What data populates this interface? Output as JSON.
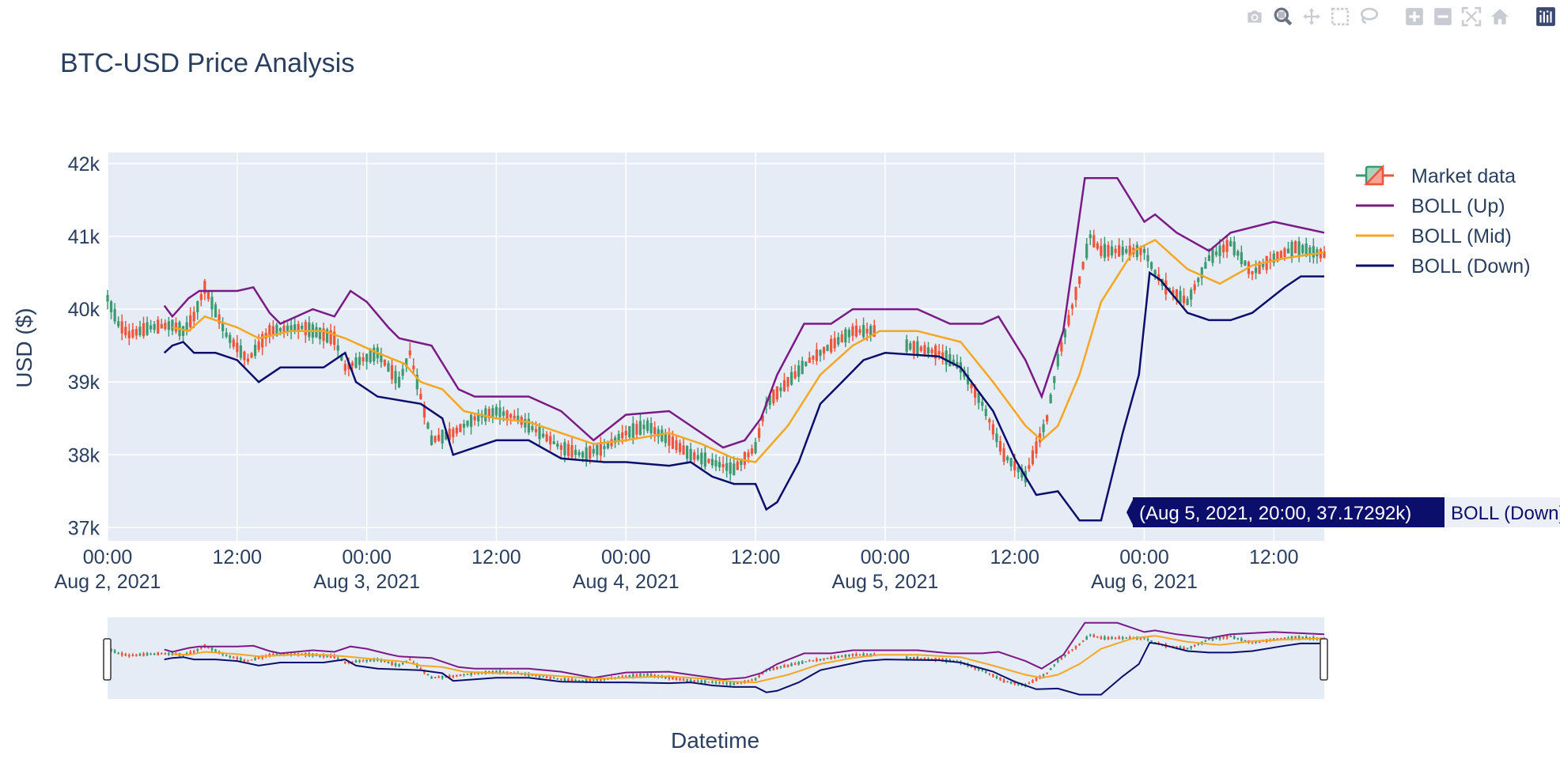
{
  "modebar": {
    "buttons": [
      "camera-icon",
      "zoom-icon",
      "pan-icon",
      "box-select-icon",
      "lasso-select-icon",
      "zoom-in-icon",
      "zoom-out-icon",
      "autoscale-icon",
      "reset-axes-icon",
      "plotly-logo-icon"
    ]
  },
  "chart_data": {
    "type": "candlestick",
    "title": "BTC-USD Price Analysis",
    "xlabel": "Datetime",
    "ylabel": "USD ($)",
    "xlim": [
      "2021-08-02 00:00",
      "2021-08-06 16:40"
    ],
    "ylim": [
      36820,
      42150
    ],
    "yticks": [
      {
        "value": 37000,
        "label": "37k"
      },
      {
        "value": 38000,
        "label": "38k"
      },
      {
        "value": 39000,
        "label": "39k"
      },
      {
        "value": 40000,
        "label": "40k"
      },
      {
        "value": 41000,
        "label": "41k"
      },
      {
        "value": 42000,
        "label": "42k"
      }
    ],
    "xticks": [
      {
        "value": "2021-08-02 00:00",
        "label": "00:00",
        "sub": "Aug 2, 2021"
      },
      {
        "value": "2021-08-02 12:00",
        "label": "12:00",
        "sub": ""
      },
      {
        "value": "2021-08-03 00:00",
        "label": "00:00",
        "sub": "Aug 3, 2021"
      },
      {
        "value": "2021-08-03 12:00",
        "label": "12:00",
        "sub": ""
      },
      {
        "value": "2021-08-04 00:00",
        "label": "00:00",
        "sub": "Aug 4, 2021"
      },
      {
        "value": "2021-08-04 12:00",
        "label": "12:00",
        "sub": ""
      },
      {
        "value": "2021-08-05 00:00",
        "label": "00:00",
        "sub": "Aug 5, 2021"
      },
      {
        "value": "2021-08-05 12:00",
        "label": "12:00",
        "sub": ""
      },
      {
        "value": "2021-08-06 00:00",
        "label": "00:00",
        "sub": "Aug 6, 2021"
      },
      {
        "value": "2021-08-06 12:00",
        "label": "12:00",
        "sub": ""
      }
    ],
    "grid": true,
    "legend_position": "right",
    "colors": {
      "increasing": "#3d9970",
      "decreasing": "#ef553b",
      "boll_up": "#7b1a85",
      "boll_mid": "#f5a623",
      "boll_down": "#0b0f6b",
      "plot_bg": "#e5ecf6"
    },
    "candle_trend": [
      [
        "2021-08-02 00:00",
        40150
      ],
      [
        "2021-08-02 01:00",
        39800
      ],
      [
        "2021-08-02 02:00",
        39650
      ],
      [
        "2021-08-02 04:00",
        39750
      ],
      [
        "2021-08-02 06:00",
        39780
      ],
      [
        "2021-08-02 07:00",
        39700
      ],
      [
        "2021-08-02 08:00",
        39900
      ],
      [
        "2021-08-02 09:00",
        40300
      ],
      [
        "2021-08-02 11:00",
        39650
      ],
      [
        "2021-08-02 13:00",
        39300
      ],
      [
        "2021-08-02 15:00",
        39700
      ],
      [
        "2021-08-02 18:00",
        39750
      ],
      [
        "2021-08-02 21:00",
        39600
      ],
      [
        "2021-08-02 22:00",
        39200
      ],
      [
        "2021-08-03 01:00",
        39400
      ],
      [
        "2021-08-03 03:00",
        39000
      ],
      [
        "2021-08-03 04:00",
        39400
      ],
      [
        "2021-08-03 05:00",
        38800
      ],
      [
        "2021-08-03 06:00",
        38200
      ],
      [
        "2021-08-03 08:00",
        38300
      ],
      [
        "2021-08-03 10:00",
        38500
      ],
      [
        "2021-08-03 12:00",
        38600
      ],
      [
        "2021-08-03 14:00",
        38500
      ],
      [
        "2021-08-03 16:00",
        38300
      ],
      [
        "2021-08-03 18:00",
        38100
      ],
      [
        "2021-08-03 20:00",
        38000
      ],
      [
        "2021-08-03 22:00",
        38100
      ],
      [
        "2021-08-04 00:00",
        38300
      ],
      [
        "2021-08-04 02:00",
        38400
      ],
      [
        "2021-08-04 04:00",
        38200
      ],
      [
        "2021-08-04 06:00",
        38000
      ],
      [
        "2021-08-04 08:00",
        37900
      ],
      [
        "2021-08-04 10:00",
        37800
      ],
      [
        "2021-08-04 12:00",
        38100
      ],
      [
        "2021-08-04 13:00",
        38700
      ],
      [
        "2021-08-04 15:00",
        39000
      ],
      [
        "2021-08-04 17:00",
        39300
      ],
      [
        "2021-08-04 19:00",
        39500
      ],
      [
        "2021-08-04 21:00",
        39700
      ],
      [
        "2021-08-05 00:00",
        39700
      ],
      [
        "2021-08-05 02:00",
        39500
      ],
      [
        "2021-08-05 05:00",
        39400
      ],
      [
        "2021-08-05 07:00",
        39200
      ],
      [
        "2021-08-05 09:00",
        38700
      ],
      [
        "2021-08-05 11:00",
        38000
      ],
      [
        "2021-08-05 13:00",
        37700
      ],
      [
        "2021-08-05 15:00",
        38500
      ],
      [
        "2021-08-05 16:00",
        39300
      ],
      [
        "2021-08-05 18:00",
        40400
      ],
      [
        "2021-08-05 19:00",
        41000
      ],
      [
        "2021-08-05 20:00",
        40800
      ],
      [
        "2021-08-06 00:00",
        40800
      ],
      [
        "2021-08-06 01:00",
        40500
      ],
      [
        "2021-08-06 02:00",
        40300
      ],
      [
        "2021-08-06 04:00",
        40100
      ],
      [
        "2021-08-06 06:00",
        40700
      ],
      [
        "2021-08-06 08:00",
        40900
      ],
      [
        "2021-08-06 10:00",
        40500
      ],
      [
        "2021-08-06 12:00",
        40700
      ],
      [
        "2021-08-06 14:00",
        40850
      ],
      [
        "2021-08-06 16:40",
        40750
      ]
    ],
    "candle_gaps": [
      [
        "2021-08-04 23:00",
        "2021-08-05 02:00"
      ]
    ],
    "series": [
      {
        "name": "BOLL (Up)",
        "points": [
          [
            "2021-08-02 05:15",
            40050
          ],
          [
            "2021-08-02 06:00",
            39900
          ],
          [
            "2021-08-02 07:30",
            40150
          ],
          [
            "2021-08-02 08:30",
            40250
          ],
          [
            "2021-08-02 12:00",
            40250
          ],
          [
            "2021-08-02 13:30",
            40300
          ],
          [
            "2021-08-02 15:00",
            39950
          ],
          [
            "2021-08-02 16:00",
            39800
          ],
          [
            "2021-08-02 19:00",
            40000
          ],
          [
            "2021-08-02 21:00",
            39900
          ],
          [
            "2021-08-02 22:30",
            40250
          ],
          [
            "2021-08-03 00:00",
            40100
          ],
          [
            "2021-08-03 02:00",
            39750
          ],
          [
            "2021-08-03 03:00",
            39600
          ],
          [
            "2021-08-03 06:00",
            39500
          ],
          [
            "2021-08-03 08:30",
            38900
          ],
          [
            "2021-08-03 10:00",
            38800
          ],
          [
            "2021-08-03 15:00",
            38800
          ],
          [
            "2021-08-03 18:00",
            38600
          ],
          [
            "2021-08-03 21:00",
            38200
          ],
          [
            "2021-08-04 00:00",
            38550
          ],
          [
            "2021-08-04 04:00",
            38600
          ],
          [
            "2021-08-04 06:00",
            38400
          ],
          [
            "2021-08-04 09:00",
            38100
          ],
          [
            "2021-08-04 11:00",
            38200
          ],
          [
            "2021-08-04 12:30",
            38500
          ],
          [
            "2021-08-04 14:00",
            39100
          ],
          [
            "2021-08-04 16:30",
            39800
          ],
          [
            "2021-08-04 19:00",
            39800
          ],
          [
            "2021-08-04 21:00",
            40000
          ],
          [
            "2021-08-05 03:00",
            40000
          ],
          [
            "2021-08-05 06:00",
            39800
          ],
          [
            "2021-08-05 07:30",
            39800
          ],
          [
            "2021-08-05 09:00",
            39800
          ],
          [
            "2021-08-05 10:30",
            39900
          ],
          [
            "2021-08-05 13:00",
            39300
          ],
          [
            "2021-08-05 14:30",
            38800
          ],
          [
            "2021-08-05 16:30",
            39700
          ],
          [
            "2021-08-05 18:30",
            41800
          ],
          [
            "2021-08-05 21:30",
            41800
          ],
          [
            "2021-08-06 00:00",
            41200
          ],
          [
            "2021-08-06 01:00",
            41300
          ],
          [
            "2021-08-06 03:00",
            41050
          ],
          [
            "2021-08-06 06:00",
            40800
          ],
          [
            "2021-08-06 08:00",
            41050
          ],
          [
            "2021-08-06 12:00",
            41200
          ],
          [
            "2021-08-06 16:40",
            41050
          ]
        ]
      },
      {
        "name": "BOLL (Mid)",
        "points": [
          [
            "2021-08-02 06:00",
            39750
          ],
          [
            "2021-08-02 07:30",
            39700
          ],
          [
            "2021-08-02 09:00",
            39900
          ],
          [
            "2021-08-02 12:00",
            39750
          ],
          [
            "2021-08-02 14:00",
            39600
          ],
          [
            "2021-08-02 17:00",
            39700
          ],
          [
            "2021-08-02 20:00",
            39700
          ],
          [
            "2021-08-02 22:00",
            39600
          ],
          [
            "2021-08-03 01:00",
            39400
          ],
          [
            "2021-08-03 03:30",
            39250
          ],
          [
            "2021-08-03 05:00",
            39000
          ],
          [
            "2021-08-03 07:00",
            38900
          ],
          [
            "2021-08-03 09:00",
            38600
          ],
          [
            "2021-08-03 12:00",
            38500
          ],
          [
            "2021-08-03 15:00",
            38450
          ],
          [
            "2021-08-03 18:00",
            38300
          ],
          [
            "2021-08-03 21:00",
            38150
          ],
          [
            "2021-08-04 00:00",
            38200
          ],
          [
            "2021-08-04 04:00",
            38300
          ],
          [
            "2021-08-04 07:00",
            38150
          ],
          [
            "2021-08-04 10:00",
            37950
          ],
          [
            "2021-08-04 12:00",
            37900
          ],
          [
            "2021-08-04 15:00",
            38400
          ],
          [
            "2021-08-04 18:00",
            39100
          ],
          [
            "2021-08-04 21:00",
            39500
          ],
          [
            "2021-08-04 23:30",
            39700
          ],
          [
            "2021-08-05 03:00",
            39700
          ],
          [
            "2021-08-05 07:00",
            39550
          ],
          [
            "2021-08-05 10:00",
            39000
          ],
          [
            "2021-08-05 13:00",
            38400
          ],
          [
            "2021-08-05 14:30",
            38200
          ],
          [
            "2021-08-05 16:00",
            38400
          ],
          [
            "2021-08-05 18:00",
            39100
          ],
          [
            "2021-08-05 20:00",
            40100
          ],
          [
            "2021-08-05 23:00",
            40800
          ],
          [
            "2021-08-06 01:00",
            40950
          ],
          [
            "2021-08-06 04:00",
            40550
          ],
          [
            "2021-08-06 07:00",
            40350
          ],
          [
            "2021-08-06 10:00",
            40600
          ],
          [
            "2021-08-06 13:00",
            40700
          ],
          [
            "2021-08-06 16:40",
            40780
          ]
        ]
      },
      {
        "name": "BOLL (Down)",
        "points": [
          [
            "2021-08-02 05:15",
            39400
          ],
          [
            "2021-08-02 06:00",
            39500
          ],
          [
            "2021-08-02 07:00",
            39550
          ],
          [
            "2021-08-02 08:00",
            39400
          ],
          [
            "2021-08-02 10:00",
            39400
          ],
          [
            "2021-08-02 12:00",
            39300
          ],
          [
            "2021-08-02 14:00",
            39000
          ],
          [
            "2021-08-02 16:00",
            39200
          ],
          [
            "2021-08-02 20:00",
            39200
          ],
          [
            "2021-08-02 22:00",
            39400
          ],
          [
            "2021-08-02 23:00",
            39000
          ],
          [
            "2021-08-03 01:00",
            38800
          ],
          [
            "2021-08-03 03:00",
            38750
          ],
          [
            "2021-08-03 05:00",
            38700
          ],
          [
            "2021-08-03 07:00",
            38500
          ],
          [
            "2021-08-03 08:00",
            38000
          ],
          [
            "2021-08-03 10:00",
            38100
          ],
          [
            "2021-08-03 12:00",
            38200
          ],
          [
            "2021-08-03 15:00",
            38200
          ],
          [
            "2021-08-03 18:00",
            37950
          ],
          [
            "2021-08-03 22:00",
            37900
          ],
          [
            "2021-08-04 00:00",
            37900
          ],
          [
            "2021-08-04 04:00",
            37850
          ],
          [
            "2021-08-04 06:00",
            37900
          ],
          [
            "2021-08-04 08:00",
            37700
          ],
          [
            "2021-08-04 10:00",
            37600
          ],
          [
            "2021-08-04 12:00",
            37600
          ],
          [
            "2021-08-04 13:00",
            37250
          ],
          [
            "2021-08-04 14:00",
            37350
          ],
          [
            "2021-08-04 16:00",
            37900
          ],
          [
            "2021-08-04 18:00",
            38700
          ],
          [
            "2021-08-04 20:00",
            39000
          ],
          [
            "2021-08-04 22:00",
            39300
          ],
          [
            "2021-08-05 00:00",
            39400
          ],
          [
            "2021-08-05 05:00",
            39350
          ],
          [
            "2021-08-05 07:00",
            39200
          ],
          [
            "2021-08-05 10:00",
            38600
          ],
          [
            "2021-08-05 12:00",
            37950
          ],
          [
            "2021-08-05 14:00",
            37450
          ],
          [
            "2021-08-05 16:00",
            37500
          ],
          [
            "2021-08-05 18:00",
            37100
          ],
          [
            "2021-08-05 20:00",
            37100
          ],
          [
            "2021-08-05 22:00",
            38300
          ],
          [
            "2021-08-05 23:30",
            39100
          ],
          [
            "2021-08-06 00:30",
            40500
          ],
          [
            "2021-08-06 01:30",
            40400
          ],
          [
            "2021-08-06 04:00",
            39950
          ],
          [
            "2021-08-06 06:00",
            39850
          ],
          [
            "2021-08-06 08:00",
            39850
          ],
          [
            "2021-08-06 10:00",
            39950
          ],
          [
            "2021-08-06 13:00",
            40300
          ],
          [
            "2021-08-06 14:30",
            40450
          ],
          [
            "2021-08-06 16:40",
            40450
          ]
        ]
      }
    ],
    "legend": [
      "Market data",
      "BOLL (Up)",
      "BOLL (Mid)",
      "BOLL (Down)"
    ],
    "hover": {
      "text": "(Aug 5, 2021, 20:00, 37.17292k)",
      "series": "BOLL (Down)"
    }
  }
}
